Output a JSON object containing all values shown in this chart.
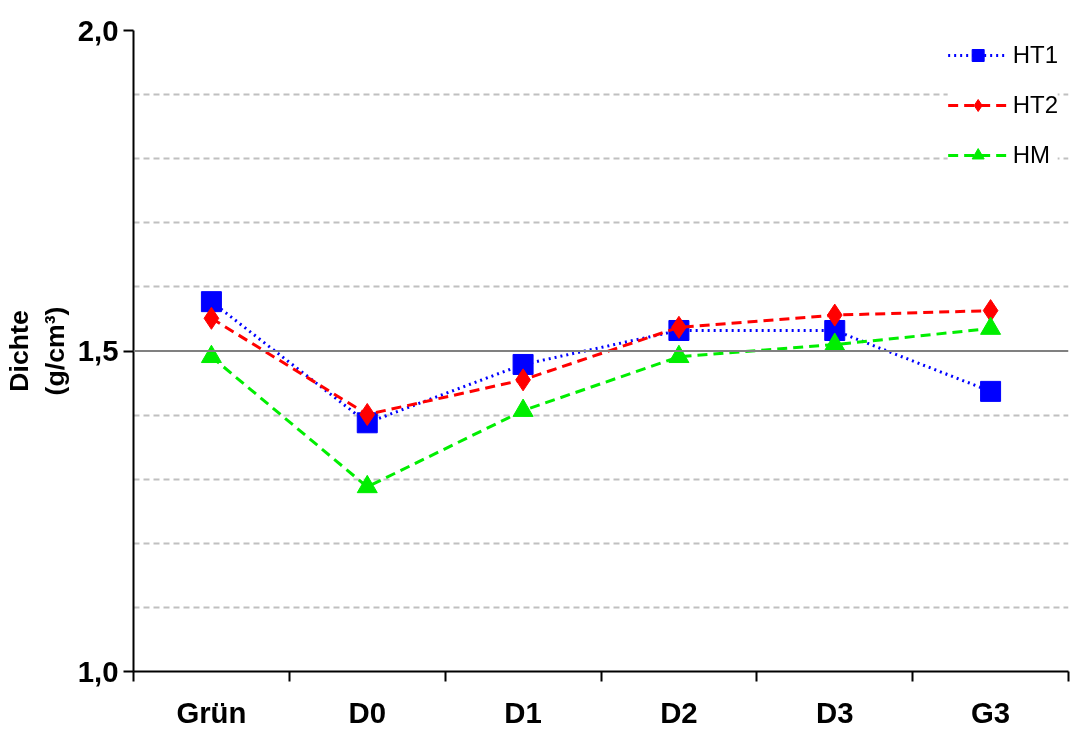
{
  "chart_data": {
    "type": "line",
    "ylabel": "Dichte\n(g/cm³)",
    "categories": [
      "Grün",
      "D0",
      "D1",
      "D2",
      "D3",
      "G3"
    ],
    "ylim": [
      1.0,
      2.0
    ],
    "yticks": [
      {
        "value": 1.0,
        "label": "1,0"
      },
      {
        "value": 1.1,
        "label": null
      },
      {
        "value": 1.2,
        "label": null
      },
      {
        "value": 1.3,
        "label": null
      },
      {
        "value": 1.4,
        "label": null
      },
      {
        "value": 1.5,
        "label": "1,5"
      },
      {
        "value": 1.6,
        "label": null
      },
      {
        "value": 1.7,
        "label": null
      },
      {
        "value": 1.8,
        "label": null
      },
      {
        "value": 1.9,
        "label": null
      },
      {
        "value": 2.0,
        "label": "2,0"
      }
    ],
    "grid": "y",
    "legend": "top right",
    "ref_lines": [
      {
        "axis": "y",
        "value": 1.5,
        "color": "#808080",
        "line_style": "solid"
      }
    ],
    "series": [
      {
        "name": "HT1",
        "color": "#0000ff",
        "marker": "square",
        "line_style": "dotted",
        "values": [
          1.577,
          1.388,
          1.479,
          1.532,
          1.532,
          1.437
        ]
      },
      {
        "name": "HT2",
        "color": "#ff0000",
        "marker": "diamond",
        "line_style": "dashed",
        "values": [
          1.551,
          1.401,
          1.455,
          1.537,
          1.556,
          1.563
        ]
      },
      {
        "name": "HM",
        "color": "#00ee00",
        "marker": "triangle",
        "line_style": "dashed",
        "values": [
          1.491,
          1.288,
          1.407,
          1.491,
          1.51,
          1.535
        ]
      }
    ]
  }
}
